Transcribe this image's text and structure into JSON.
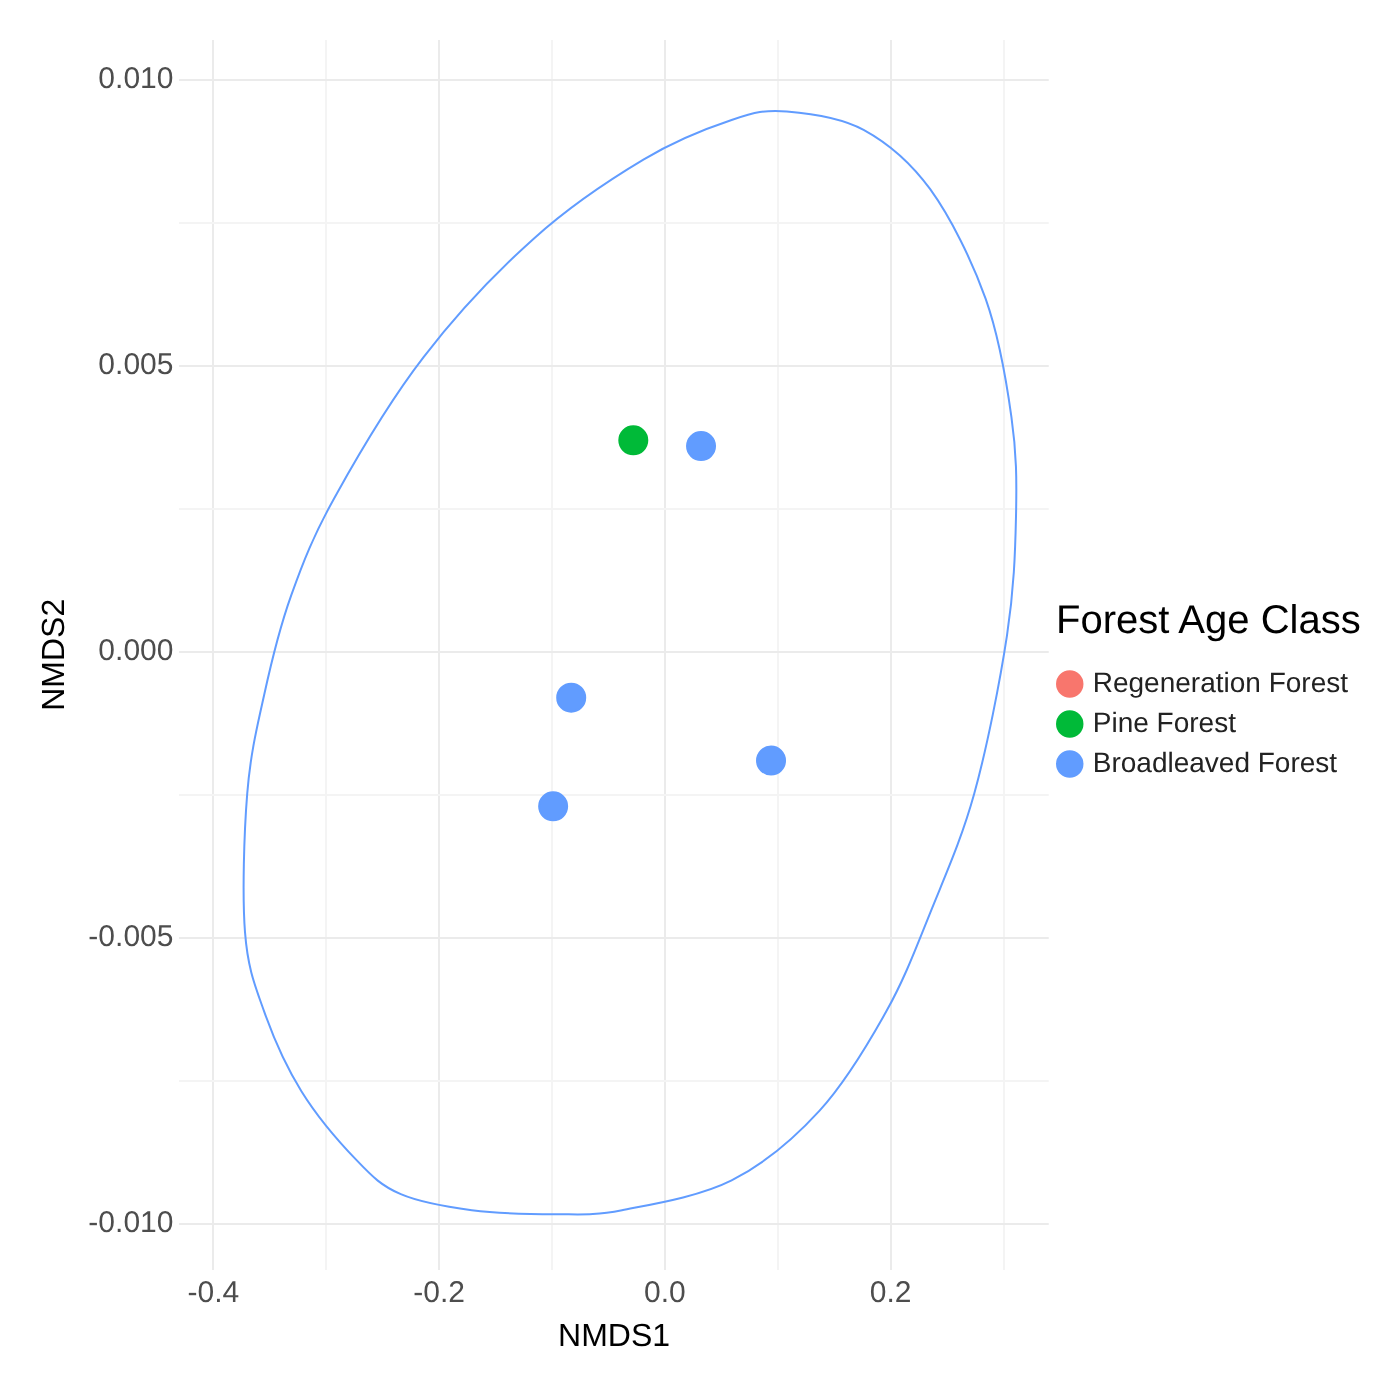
{
  "chart_data": {
    "type": "scatter",
    "xlabel": "NMDS1",
    "ylabel": "NMDS2",
    "legend_title": "Forest Age Class",
    "legend": "right",
    "grid": true,
    "marker": "circle",
    "xlim": [
      -0.43,
      0.34
    ],
    "xticks": [
      -0.4,
      {
        "value": -0.3,
        "label": null
      },
      -0.2,
      {
        "value": -0.1,
        "label": null
      },
      {
        "value": 0,
        "label": "0.0"
      },
      {
        "value": 0.1,
        "label": null
      },
      0.2,
      {
        "value": 0.3,
        "label": null
      }
    ],
    "ylim": [
      -0.0108,
      0.0107
    ],
    "yticks": [
      {
        "value": -0.01,
        "label": "-0.010"
      },
      {
        "value": -0.0075,
        "label": null
      },
      {
        "value": -0.005,
        "label": "-0.005"
      },
      {
        "value": -0.0025,
        "label": null
      },
      {
        "value": 0,
        "label": "0.000"
      },
      {
        "value": 0.0025,
        "label": null
      },
      {
        "value": 0.005,
        "label": "0.005"
      },
      {
        "value": 0.0075,
        "label": null
      },
      {
        "value": 0.01,
        "label": "0.010"
      }
    ],
    "series": [
      {
        "name": "Regeneration Forest",
        "color": "#f8766d"
      },
      {
        "name": "Pine Forest",
        "color": "#00ba38",
        "x": [
          -0.028
        ],
        "values": [
          0.0037
        ]
      },
      {
        "name": "Broadleaved Forest",
        "color": "#619cff",
        "x": [
          0.032,
          -0.083,
          -0.099,
          0.094
        ],
        "values": [
          0.0036,
          -0.0008,
          -0.0027,
          -0.0019
        ]
      }
    ]
  }
}
